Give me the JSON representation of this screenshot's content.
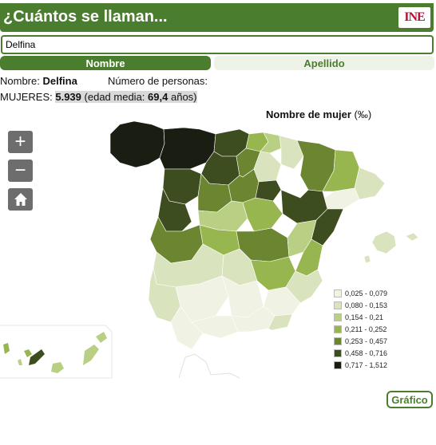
{
  "header": {
    "title": "¿Cuántos se llaman...",
    "logo_text": "INE"
  },
  "search": {
    "value": "Delfina"
  },
  "tabs": [
    {
      "label": "Nombre"
    },
    {
      "label": "Apellido"
    }
  ],
  "info": {
    "nombre_label": "Nombre:",
    "nombre_value": "Delfina",
    "personas_label": "Número de personas:",
    "mujeres_label": "MUJERES:",
    "mujeres_value": "5.939",
    "edad_prefix": "(edad media:",
    "edad_value": "69,4",
    "edad_suffix": "años)"
  },
  "map": {
    "title": "Nombre de mujer",
    "unit": "(‰)",
    "controls": {
      "zoom_in": "+",
      "zoom_out": "−"
    },
    "legend": [
      {
        "label": "0,025 - 0,079",
        "color": "#f0f2e4"
      },
      {
        "label": "0,080 - 0,153",
        "color": "#d9e3be"
      },
      {
        "label": "0,154 - 0,21",
        "color": "#b8cf84"
      },
      {
        "label": "0,211 - 0,252",
        "color": "#98b64f"
      },
      {
        "label": "0,253 - 0,457",
        "color": "#6b8530"
      },
      {
        "label": "0,458 - 0,716",
        "color": "#3d4d1f"
      },
      {
        "label": "0,717 - 1,512",
        "color": "#1a1d12"
      }
    ]
  },
  "actions": {
    "grafico_label": "Gráfico"
  }
}
